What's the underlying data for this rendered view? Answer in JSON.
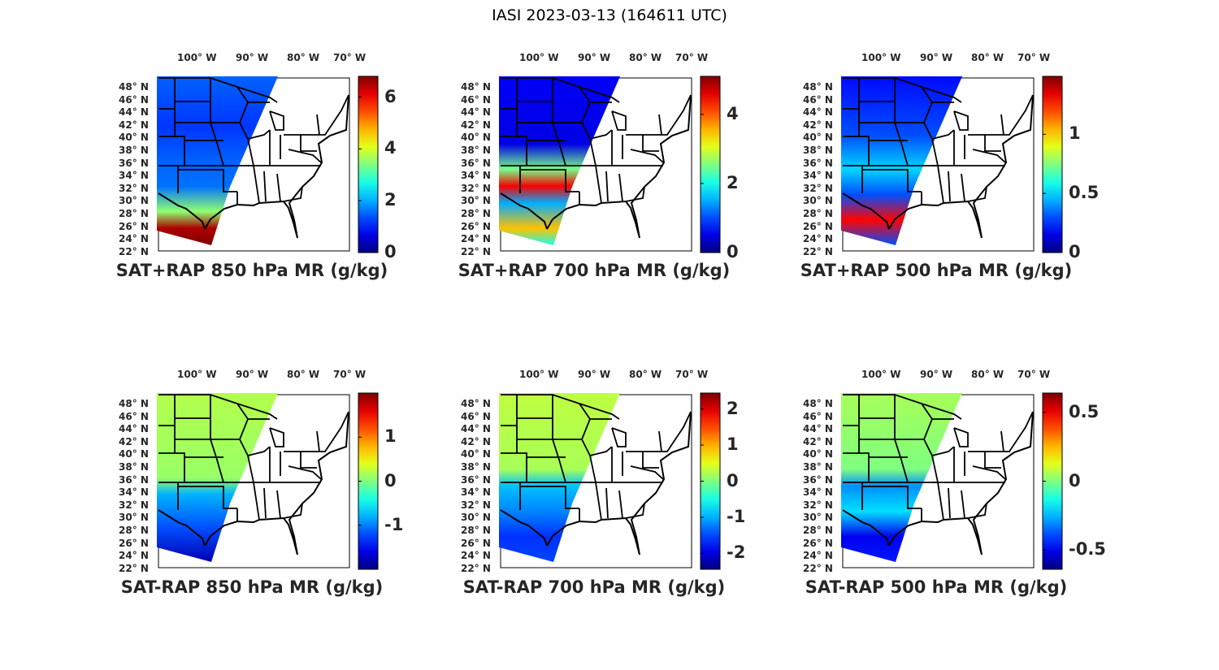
{
  "title": "IASI 2023-03-13 (164611 UTC)",
  "lon_ticks": [
    "100° W",
    "90° W",
    "80° W",
    "70° W"
  ],
  "lat_ticks": [
    "48° N",
    "46° N",
    "44° N",
    "42° N",
    "40° N",
    "38° N",
    "36° N",
    "34° N",
    "32° N",
    "30° N",
    "28° N",
    "26° N",
    "24° N",
    "22° N"
  ],
  "colormap": "jet",
  "chart_data": [
    {
      "type": "heatmap",
      "title": "SAT+RAP 850 hPa MR (g/kg)",
      "clim": [
        0,
        6.8
      ],
      "colorbar_ticks": [
        "0",
        "2",
        "4",
        "6"
      ],
      "colorbar_values": [
        0,
        2,
        4,
        6
      ],
      "swath_profile_north_to_south": [
        [
          0,
          1.5
        ],
        [
          0.3,
          1.2
        ],
        [
          0.5,
          1.5
        ],
        [
          0.65,
          1.6
        ],
        [
          0.8,
          3.5
        ],
        [
          0.9,
          6.5
        ],
        [
          1,
          6.8
        ]
      ]
    },
    {
      "type": "heatmap",
      "title": "SAT+RAP 700 hPa MR (g/kg)",
      "clim": [
        0,
        5.1
      ],
      "colorbar_ticks": [
        "0",
        "2",
        "4"
      ],
      "colorbar_values": [
        0,
        2,
        4
      ],
      "swath_profile_north_to_south": [
        [
          0,
          0.6
        ],
        [
          0.4,
          0.5
        ],
        [
          0.55,
          2.5
        ],
        [
          0.65,
          4.5
        ],
        [
          0.75,
          1.5
        ],
        [
          0.9,
          3.5
        ],
        [
          1,
          2
        ]
      ]
    },
    {
      "type": "heatmap",
      "title": "SAT+RAP 500 hPa MR (g/kg)",
      "clim": [
        0,
        1.49
      ],
      "colorbar_ticks": [
        "0",
        "0.5",
        "1"
      ],
      "colorbar_values": [
        0,
        0.5,
        1
      ],
      "swath_profile_north_to_south": [
        [
          0,
          0.2
        ],
        [
          0.35,
          0.3
        ],
        [
          0.55,
          0.5
        ],
        [
          0.7,
          0.3
        ],
        [
          0.85,
          1.3
        ],
        [
          1,
          0.3
        ]
      ]
    },
    {
      "type": "heatmap",
      "title": "SAT-RAP 850 hPa MR (g/kg)",
      "clim": [
        -2,
        2
      ],
      "colorbar_ticks": [
        "-1",
        "0",
        "1"
      ],
      "colorbar_values": [
        -1,
        0,
        1
      ],
      "swath_profile_north_to_south": [
        [
          0,
          0.2
        ],
        [
          0.5,
          0.1
        ],
        [
          0.6,
          -0.8
        ],
        [
          0.8,
          -1.2
        ],
        [
          1,
          -1.8
        ]
      ]
    },
    {
      "type": "heatmap",
      "title": "SAT-RAP 700 hPa MR (g/kg)",
      "clim": [
        -2.44,
        2.44
      ],
      "colorbar_ticks": [
        "-2",
        "-1",
        "0",
        "1",
        "2"
      ],
      "colorbar_values": [
        -2,
        -1,
        0,
        1,
        2
      ],
      "swath_profile_north_to_south": [
        [
          0,
          0.3
        ],
        [
          0.45,
          0.2
        ],
        [
          0.55,
          -0.9
        ],
        [
          0.7,
          -1.2
        ],
        [
          0.85,
          -1.6
        ],
        [
          1,
          -1.5
        ]
      ]
    },
    {
      "type": "heatmap",
      "title": "SAT-RAP 500 hPa MR (g/kg)",
      "clim": [
        -0.64,
        0.64
      ],
      "colorbar_ticks": [
        "-0.5",
        "0",
        "0.5"
      ],
      "colorbar_values": [
        -0.5,
        0,
        0.5
      ],
      "swath_profile_north_to_south": [
        [
          0,
          0.05
        ],
        [
          0.45,
          0.0
        ],
        [
          0.55,
          -0.3
        ],
        [
          0.7,
          -0.2
        ],
        [
          0.85,
          -0.5
        ],
        [
          1,
          -0.45
        ]
      ]
    }
  ]
}
